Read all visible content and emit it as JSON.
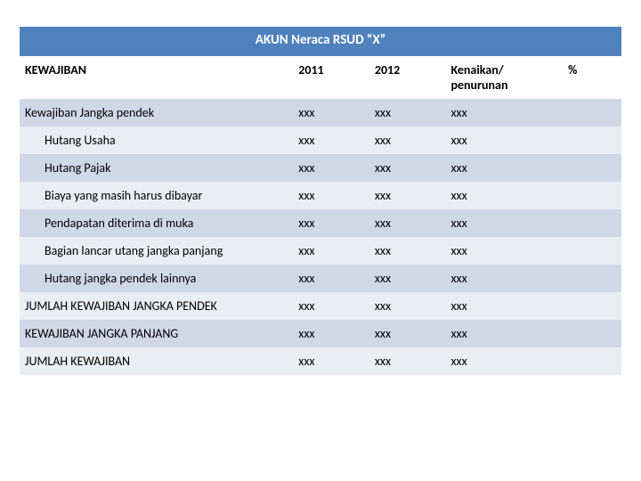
{
  "table": {
    "type": "table",
    "title": "AKUN Neraca RSUD “X”",
    "background_odd": "#d0d8e8",
    "background_even": "#e9edf4",
    "title_bg": "#4f81bd",
    "title_color": "#ffffff",
    "columns": {
      "label": "KEWAJIBAN",
      "y2011": "2011",
      "y2012": "2012",
      "change": "Kenaikan/ penurunan",
      "pct": "%"
    },
    "rows": [
      {
        "label": "Kewajiban Jangka pendek",
        "y2011": "xxx",
        "y2012": "xxx",
        "change": "xxx",
        "pct": "",
        "indent": false
      },
      {
        "label": "Hutang Usaha",
        "y2011": "xxx",
        "y2012": "xxx",
        "change": "xxx",
        "pct": "",
        "indent": true
      },
      {
        "label": "Hutang Pajak",
        "y2011": "xxx",
        "y2012": "xxx",
        "change": "xxx",
        "pct": "",
        "indent": true
      },
      {
        "label": "Biaya yang masih harus dibayar",
        "y2011": "xxx",
        "y2012": "xxx",
        "change": "xxx",
        "pct": "",
        "indent": true
      },
      {
        "label": "Pendapatan diterima di muka",
        "y2011": "xxx",
        "y2012": "xxx",
        "change": "xxx",
        "pct": "",
        "indent": true
      },
      {
        "label": "Bagian lancar utang jangka panjang",
        "y2011": "xxx",
        "y2012": "xxx",
        "change": "xxx",
        "pct": "",
        "indent": true
      },
      {
        "label": "Hutang jangka pendek lainnya",
        "y2011": "xxx",
        "y2012": "xxx",
        "change": "xxx",
        "pct": "",
        "indent": true
      },
      {
        "label": "JUMLAH KEWAJIBAN JANGKA PENDEK",
        "y2011": "xxx",
        "y2012": "xxx",
        "change": "xxx",
        "pct": "",
        "indent": false
      },
      {
        "label": "KEWAJIBAN JANGKA PANJANG",
        "y2011": "xxx",
        "y2012": "xxx",
        "change": "xxx",
        "pct": "",
        "indent": false
      },
      {
        "label": "JUMLAH KEWAJIBAN",
        "y2011": "xxx",
        "y2012": "xxx",
        "change": "xxx",
        "pct": "",
        "indent": false
      }
    ]
  }
}
